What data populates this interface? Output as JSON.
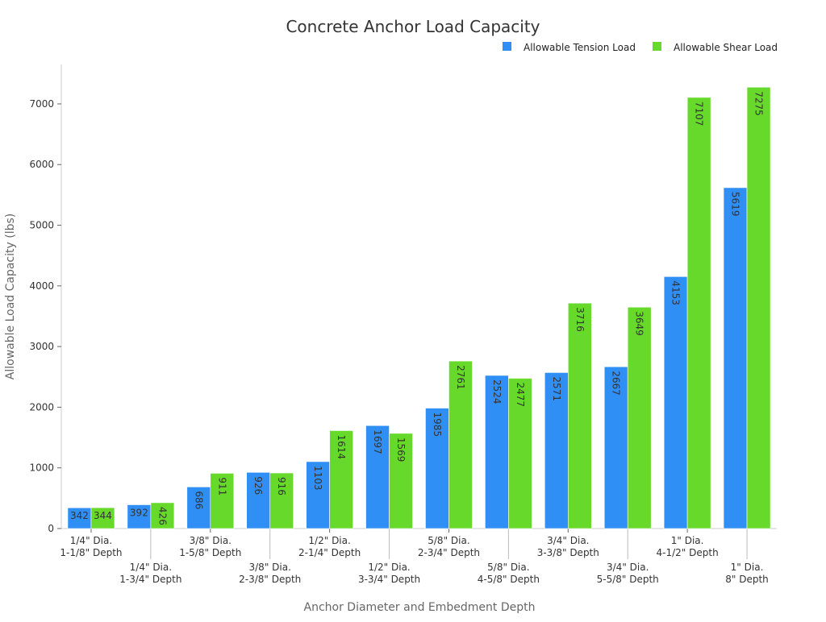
{
  "chart_data": {
    "type": "bar",
    "title": "Concrete Anchor Load Capacity",
    "xlabel": "Anchor Diameter and Embedment Depth",
    "ylabel": "Allowable Load Capacity (lbs)",
    "ylim": [
      0,
      7650
    ],
    "yticks": [
      0,
      1000,
      2000,
      3000,
      4000,
      5000,
      6000,
      7000
    ],
    "grid": false,
    "legend_position": "top-right",
    "categories": [
      [
        "1/4\" Dia.",
        "1-1/8\" Depth"
      ],
      [
        "1/4\" Dia.",
        "1-3/4\" Depth"
      ],
      [
        "3/8\" Dia.",
        "1-5/8\" Depth"
      ],
      [
        "3/8\" Dia.",
        "2-3/8\" Depth"
      ],
      [
        "1/2\" Dia.",
        "2-1/4\" Depth"
      ],
      [
        "1/2\" Dia.",
        "3-3/4\" Depth"
      ],
      [
        "5/8\" Dia.",
        "2-3/4\" Depth"
      ],
      [
        "5/8\" Dia.",
        "4-5/8\" Depth"
      ],
      [
        "3/4\" Dia.",
        "3-3/8\" Depth"
      ],
      [
        "3/4\" Dia.",
        "5-5/8\" Depth"
      ],
      [
        "1\" Dia.",
        "4-1/2\" Depth"
      ],
      [
        "1\" Dia.",
        "8\" Depth"
      ]
    ],
    "series": [
      {
        "name": "Allowable Tension Load",
        "color": "#2f8ff5",
        "values": [
          342,
          392,
          686,
          926,
          1103,
          1697,
          1985,
          2524,
          2571,
          2667,
          4153,
          5619
        ]
      },
      {
        "name": "Allowable Shear Load",
        "color": "#66d92a",
        "values": [
          344,
          426,
          911,
          916,
          1614,
          1569,
          2761,
          2477,
          3716,
          3649,
          7107,
          7275
        ]
      }
    ]
  }
}
